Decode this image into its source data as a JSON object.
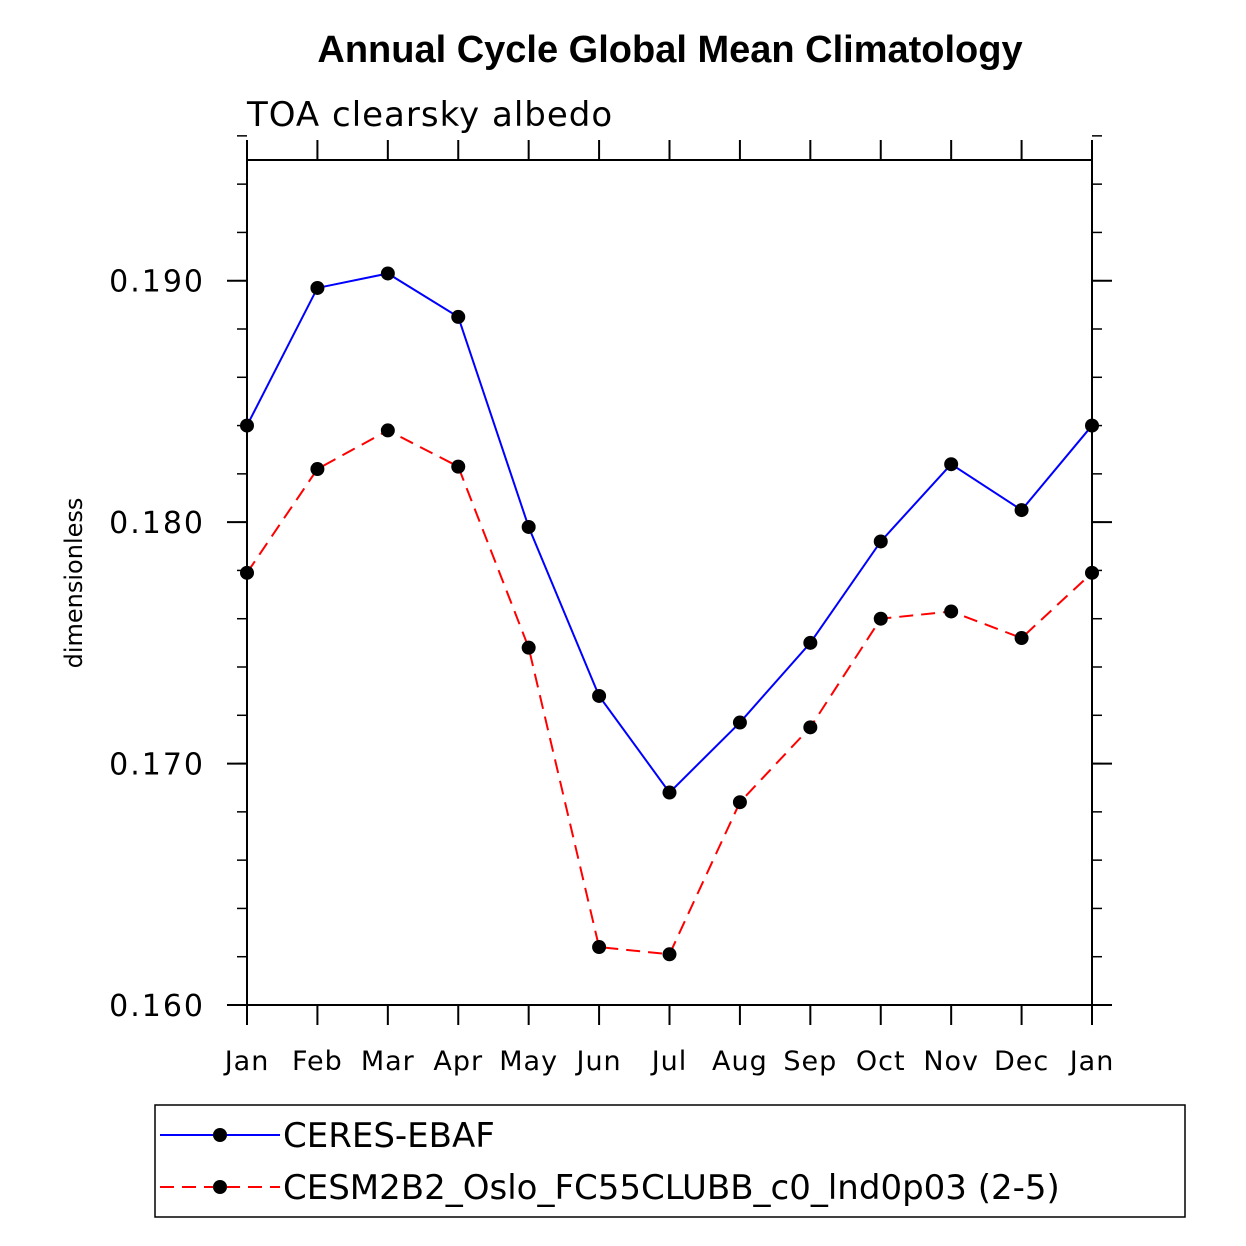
{
  "chart_data": {
    "type": "line",
    "title": "Annual Cycle Global Mean Climatology",
    "subtitle": "TOA clearsky albedo",
    "xlabel": "",
    "ylabel": "dimensionless",
    "categories": [
      "Jan",
      "Feb",
      "Mar",
      "Apr",
      "May",
      "Jun",
      "Jul",
      "Aug",
      "Sep",
      "Oct",
      "Nov",
      "Dec",
      "Jan"
    ],
    "ylim": [
      0.16,
      0.195
    ],
    "yticks": [
      0.16,
      0.17,
      0.18,
      0.19
    ],
    "ytick_labels": [
      "0.160",
      "0.170",
      "0.180",
      "0.190"
    ],
    "series": [
      {
        "name": "CERES-EBAF",
        "color": "#0000ff",
        "dash": "solid",
        "marker": "dot",
        "values": [
          0.184,
          0.1897,
          0.1903,
          0.1885,
          0.1798,
          0.1728,
          0.1688,
          0.1717,
          0.175,
          0.1792,
          0.1824,
          0.1805,
          0.184
        ]
      },
      {
        "name": "CESM2B2_Oslo_FC55CLUBB_c0_lnd0p03 (2-5)",
        "color": "#ff0000",
        "dash": "dashed",
        "marker": "dot",
        "values": [
          0.1779,
          0.1822,
          0.1838,
          0.1823,
          0.1748,
          0.1624,
          0.1621,
          0.1684,
          0.1715,
          0.176,
          0.1763,
          0.1752,
          0.1779
        ]
      }
    ],
    "legend_position": "bottom",
    "grid": false
  }
}
